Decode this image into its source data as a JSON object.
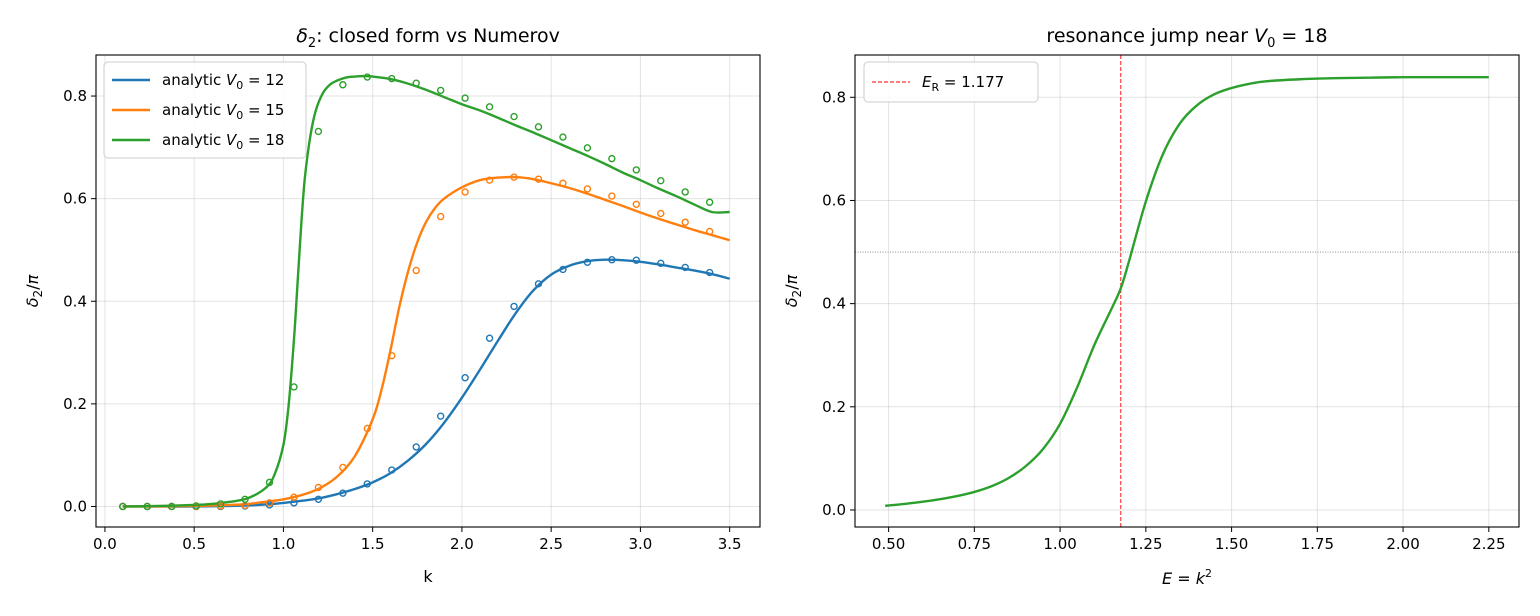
{
  "chart_data": [
    {
      "type": "line",
      "title": "δ₂: closed form vs Numerov",
      "xlabel": "k",
      "ylabel": "δ₂/π",
      "xlim": [
        -0.05,
        3.67
      ],
      "ylim": [
        -0.04,
        0.88
      ],
      "xticks": [
        "0.0",
        "0.5",
        "1.0",
        "1.5",
        "2.0",
        "2.5",
        "3.0",
        "3.5"
      ],
      "yticks": [
        "0.0",
        "0.2",
        "0.4",
        "0.6",
        "0.8"
      ],
      "grid": true,
      "legend_position": "upper-left",
      "series": [
        {
          "name": "analytic V₀ = 12",
          "color": "#1f77b4",
          "x": [
            0.1,
            0.3,
            0.5,
            0.7,
            0.8,
            0.9,
            1.0,
            1.1,
            1.2,
            1.3,
            1.4,
            1.5,
            1.6,
            1.7,
            1.8,
            1.9,
            2.0,
            2.1,
            2.2,
            2.3,
            2.4,
            2.5,
            2.6,
            2.7,
            2.8,
            2.9,
            3.0,
            3.1,
            3.2,
            3.3,
            3.4,
            3.5
          ],
          "values": [
            0.0,
            0.0,
            0.0,
            0.001,
            0.002,
            0.004,
            0.007,
            0.011,
            0.016,
            0.024,
            0.034,
            0.047,
            0.065,
            0.09,
            0.122,
            0.163,
            0.212,
            0.266,
            0.322,
            0.376,
            0.421,
            0.452,
            0.469,
            0.478,
            0.481,
            0.48,
            0.477,
            0.472,
            0.466,
            0.46,
            0.453,
            0.444
          ]
        },
        {
          "name": "analytic V₀ = 15",
          "color": "#ff7f0e",
          "x": [
            0.1,
            0.3,
            0.5,
            0.7,
            0.8,
            0.9,
            1.0,
            1.1,
            1.2,
            1.3,
            1.4,
            1.5,
            1.55,
            1.6,
            1.65,
            1.7,
            1.75,
            1.8,
            1.85,
            1.9,
            2.0,
            2.1,
            2.2,
            2.3,
            2.4,
            2.5,
            2.6,
            2.7,
            2.8,
            2.9,
            3.0,
            3.1,
            3.2,
            3.3,
            3.4,
            3.5
          ],
          "values": [
            0.0,
            0.0,
            0.001,
            0.003,
            0.005,
            0.009,
            0.014,
            0.022,
            0.035,
            0.058,
            0.098,
            0.17,
            0.228,
            0.305,
            0.39,
            0.46,
            0.515,
            0.555,
            0.582,
            0.6,
            0.622,
            0.636,
            0.641,
            0.642,
            0.638,
            0.63,
            0.621,
            0.61,
            0.598,
            0.586,
            0.573,
            0.561,
            0.55,
            0.539,
            0.529,
            0.519
          ]
        },
        {
          "name": "analytic V₀ = 18",
          "color": "#2ca02c",
          "x": [
            0.1,
            0.3,
            0.5,
            0.6,
            0.7,
            0.8,
            0.9,
            0.95,
            1.0,
            1.03,
            1.06,
            1.08,
            1.1,
            1.12,
            1.15,
            1.18,
            1.22,
            1.26,
            1.3,
            1.35,
            1.4,
            1.45,
            1.5,
            1.6,
            1.7,
            1.8,
            1.9,
            2.0,
            2.1,
            2.2,
            2.3,
            2.4,
            2.5,
            2.6,
            2.7,
            2.8,
            2.9,
            3.0,
            3.1,
            3.2,
            3.3,
            3.4,
            3.5
          ],
          "values": [
            0.0,
            0.001,
            0.003,
            0.005,
            0.009,
            0.016,
            0.036,
            0.062,
            0.12,
            0.2,
            0.33,
            0.44,
            0.55,
            0.64,
            0.72,
            0.77,
            0.805,
            0.822,
            0.83,
            0.836,
            0.838,
            0.839,
            0.838,
            0.833,
            0.824,
            0.812,
            0.798,
            0.784,
            0.772,
            0.758,
            0.743,
            0.729,
            0.714,
            0.699,
            0.684,
            0.668,
            0.651,
            0.636,
            0.62,
            0.605,
            0.589,
            0.574,
            0.574
          ]
        }
      ],
      "markers": [
        {
          "series": "analytic V₀ = 12",
          "color": "#1f77b4",
          "x": [
            0.1,
            0.237,
            0.374,
            0.511,
            0.648,
            0.785,
            0.922,
            1.059,
            1.196,
            1.333,
            1.47,
            1.607,
            1.744,
            1.881,
            2.018,
            2.155,
            2.292,
            2.429,
            2.566,
            2.703,
            2.84,
            2.977,
            3.114,
            3.251,
            3.388
          ],
          "values": [
            0.0,
            0.0,
            0.0,
            0.0,
            0.0,
            0.001,
            0.003,
            0.007,
            0.014,
            0.026,
            0.044,
            0.071,
            0.116,
            0.176,
            0.251,
            0.328,
            0.39,
            0.434,
            0.462,
            0.476,
            0.481,
            0.48,
            0.474,
            0.466,
            0.456
          ]
        },
        {
          "series": "analytic V₀ = 15",
          "color": "#ff7f0e",
          "x": [
            0.1,
            0.237,
            0.374,
            0.511,
            0.648,
            0.785,
            0.922,
            1.059,
            1.196,
            1.333,
            1.47,
            1.607,
            1.744,
            1.881,
            2.018,
            2.155,
            2.292,
            2.429,
            2.566,
            2.703,
            2.84,
            2.977,
            3.114,
            3.251,
            3.388
          ],
          "values": [
            0.0,
            0.0,
            0.0,
            0.0,
            0.001,
            0.002,
            0.007,
            0.018,
            0.037,
            0.076,
            0.152,
            0.294,
            0.46,
            0.565,
            0.613,
            0.636,
            0.642,
            0.638,
            0.63,
            0.619,
            0.605,
            0.589,
            0.571,
            0.554,
            0.536
          ]
        },
        {
          "series": "analytic V₀ = 18",
          "color": "#2ca02c",
          "x": [
            0.1,
            0.237,
            0.374,
            0.511,
            0.648,
            0.785,
            0.922,
            1.059,
            1.196,
            1.333,
            1.47,
            1.607,
            1.744,
            1.881,
            2.018,
            2.155,
            2.292,
            2.429,
            2.566,
            2.703,
            2.84,
            2.977,
            3.114,
            3.251,
            3.388
          ],
          "values": [
            0.0,
            0.0,
            0.0,
            0.001,
            0.005,
            0.014,
            0.047,
            0.233,
            0.731,
            0.822,
            0.837,
            0.834,
            0.825,
            0.811,
            0.796,
            0.779,
            0.76,
            0.74,
            0.72,
            0.699,
            0.678,
            0.656,
            0.635,
            0.613,
            0.593
          ]
        }
      ]
    },
    {
      "type": "line",
      "title": "resonance jump near V₀ = 18",
      "xlabel": "E = k²",
      "ylabel": "δ₂/π",
      "xlim": [
        0.402,
        2.338
      ],
      "ylim": [
        -0.033,
        0.882
      ],
      "xticks": [
        "0.50",
        "0.75",
        "1.00",
        "1.25",
        "1.50",
        "1.75",
        "2.00",
        "2.25"
      ],
      "yticks": [
        "0.0",
        "0.2",
        "0.4",
        "0.6",
        "0.8"
      ],
      "grid": true,
      "legend_position": "upper-left",
      "reference_lines": [
        {
          "type": "vertical",
          "x": 1.177,
          "color": "#ff0000",
          "style": "dashed",
          "label": "E_R = 1.177"
        },
        {
          "type": "horizontal",
          "y": 0.5,
          "color": "#808080",
          "style": "dotted"
        }
      ],
      "series": [
        {
          "name": "",
          "color": "#2ca02c",
          "x": [
            0.49,
            0.55,
            0.6,
            0.65,
            0.7,
            0.75,
            0.8,
            0.85,
            0.9,
            0.95,
            1.0,
            1.05,
            1.1,
            1.15,
            1.177,
            1.2,
            1.25,
            1.3,
            1.35,
            1.4,
            1.45,
            1.5,
            1.55,
            1.6,
            1.7,
            1.8,
            1.9,
            2.0,
            2.1,
            2.25
          ],
          "values": [
            0.008,
            0.012,
            0.016,
            0.021,
            0.027,
            0.035,
            0.046,
            0.062,
            0.085,
            0.118,
            0.167,
            0.238,
            0.32,
            0.39,
            0.43,
            0.48,
            0.598,
            0.69,
            0.75,
            0.785,
            0.806,
            0.818,
            0.826,
            0.831,
            0.835,
            0.837,
            0.838,
            0.839,
            0.839,
            0.839
          ]
        }
      ]
    }
  ],
  "legend": {
    "left": [
      {
        "prefix": "analytic ",
        "var": "V",
        "sub": "0",
        "suffix": " = 12",
        "color": "#1f77b4"
      },
      {
        "prefix": "analytic ",
        "var": "V",
        "sub": "0",
        "suffix": " = 15",
        "color": "#ff7f0e"
      },
      {
        "prefix": "analytic ",
        "var": "V",
        "sub": "0",
        "suffix": " = 18",
        "color": "#2ca02c"
      }
    ],
    "right": [
      {
        "var": "E",
        "sub": "R",
        "suffix": " = 1.177",
        "color": "#ff0000"
      }
    ]
  }
}
